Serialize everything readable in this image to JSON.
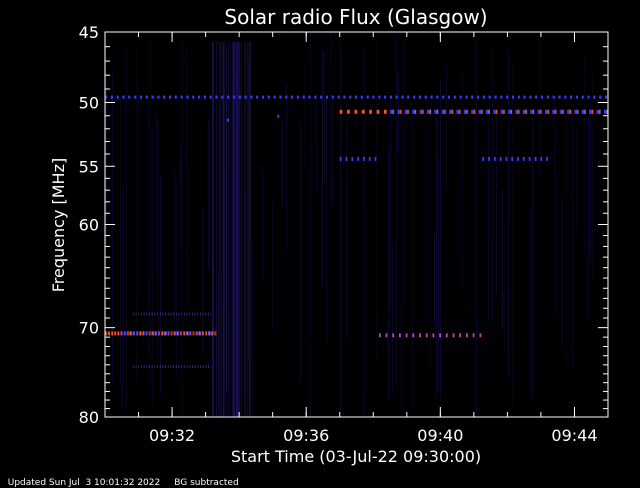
{
  "chart_data": {
    "type": "heatmap",
    "title": "Solar radio Flux (Glasgow)",
    "xlabel": "Start Time (03-Jul-22 09:30:00)",
    "ylabel": "Frequency [MHz]",
    "x_unit": "time",
    "xlim": [
      "09:30:00",
      "09:45:00"
    ],
    "xticks": [
      "09:32",
      "09:36",
      "09:40",
      "09:44"
    ],
    "ylim": [
      45,
      80
    ],
    "yticks": [
      45,
      50,
      55,
      60,
      70,
      80
    ],
    "y_scale": "log",
    "y_reversed": true,
    "colormap": [
      "#000000",
      "#1a0a4a",
      "#3030ff",
      "#a030c0",
      "#ff4030",
      "#ff9020"
    ],
    "features": [
      {
        "kind": "dotted-line",
        "freq_mhz": 49.6,
        "start": "09:30:00",
        "end": "09:45:00",
        "color": "#3838ff",
        "dash_s": [
          10,
          16
        ]
      },
      {
        "kind": "dashes",
        "freq_mhz": 50.7,
        "start": "09:37:00",
        "end": "09:45:00",
        "color": "#ff5028",
        "dash_s": [
          12,
          21
        ]
      },
      {
        "kind": "dashes",
        "freq_mhz": 50.7,
        "start": "09:38:30",
        "end": "09:45:00",
        "color": "#3040ff",
        "dash_s": [
          12,
          21
        ]
      },
      {
        "kind": "dashes",
        "freq_mhz": 54.4,
        "start": "09:37:00",
        "end": "09:38:10",
        "color": "#3040ff",
        "dash_s": [
          8,
          18
        ]
      },
      {
        "kind": "dashes",
        "freq_mhz": 54.4,
        "start": "09:41:15",
        "end": "09:43:20",
        "color": "#3040ff",
        "dash_s": [
          8,
          18
        ]
      },
      {
        "kind": "band",
        "freq_mhz": 70.6,
        "start": "09:30:00",
        "end": "09:33:20",
        "color": "#ff5028",
        "dash_s": [
          8,
          6
        ]
      },
      {
        "kind": "band",
        "freq_mhz": 70.6,
        "start": "09:30:30",
        "end": "09:33:20",
        "color": "#3040ff",
        "dash_s": [
          4,
          7
        ]
      },
      {
        "kind": "dashes",
        "freq_mhz": 70.8,
        "start": "09:38:10",
        "end": "09:41:20",
        "color": "#c040c0",
        "dash_s": [
          8,
          22
        ]
      },
      {
        "kind": "dotted-line",
        "freq_mhz": 68.6,
        "start": "09:30:50",
        "end": "09:33:10",
        "color": "#2a2a90",
        "dash_s": [
          4,
          8
        ]
      },
      {
        "kind": "dotted-line",
        "freq_mhz": 74.2,
        "start": "09:30:50",
        "end": "09:33:10",
        "color": "#2a2a90",
        "dash_s": [
          4,
          8
        ]
      },
      {
        "kind": "point",
        "freq_mhz": 51.3,
        "time": "09:33:40",
        "color": "#3040ff"
      },
      {
        "kind": "point",
        "freq_mhz": 51.0,
        "time": "09:35:10",
        "color": "#3040ff"
      }
    ]
  },
  "footer": {
    "updated": "Updated Sun Jul  3 10:01:32 2022",
    "note": "BG subtracted"
  }
}
